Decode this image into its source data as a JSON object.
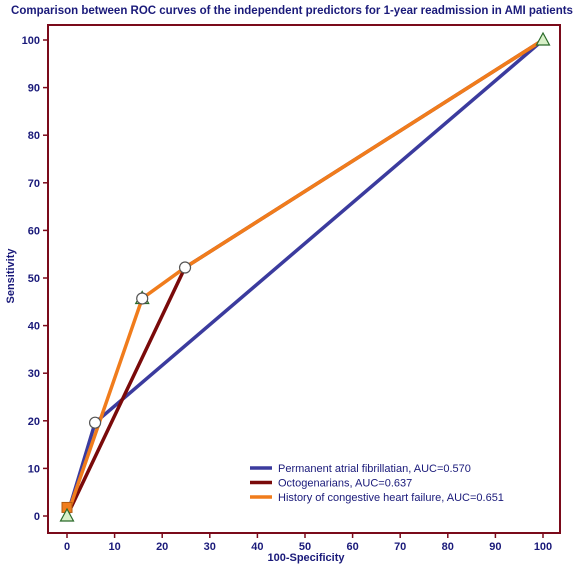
{
  "chart_data": {
    "type": "line",
    "title": "Comparison between ROC curves of the  independent predictors for 1-year readmission in AMI patients",
    "xlabel": "100-Specificity",
    "ylabel": "Sensitivity",
    "xlim": [
      0,
      100
    ],
    "ylim": [
      0,
      100
    ],
    "xticks": [
      0,
      10,
      20,
      30,
      40,
      50,
      60,
      70,
      80,
      90,
      100
    ],
    "yticks": [
      0,
      10,
      20,
      30,
      40,
      50,
      60,
      70,
      80,
      90,
      100
    ],
    "grid": false,
    "legend_position": "bottom-right",
    "series": [
      {
        "name": "Permanent atrial fibrillatian, AUC=0.570",
        "color": "#3b3b9e",
        "x": [
          0,
          5.9,
          100
        ],
        "y": [
          0,
          19.6,
          100
        ]
      },
      {
        "name": "Octogenarians, AUC=0.637",
        "color": "#7a0a0a",
        "x": [
          0,
          24.8,
          100
        ],
        "y": [
          0,
          52.2,
          100
        ]
      },
      {
        "name": "History of congestive heart failure, AUC=0.651",
        "color": "#f07c1c",
        "x": [
          0,
          15.8,
          24.8,
          100
        ],
        "y": [
          0,
          45.7,
          52.2,
          100
        ]
      }
    ],
    "markers": {
      "circles": [
        {
          "x": 5.9,
          "y": 19.6
        },
        {
          "x": 15.8,
          "y": 45.7
        },
        {
          "x": 24.8,
          "y": 52.2
        }
      ],
      "triangles": [
        {
          "x": 0,
          "y": 0
        },
        {
          "x": 100,
          "y": 100
        },
        {
          "x": 15.8,
          "y": 45.7
        }
      ],
      "squares": [
        {
          "x": 0,
          "y": 1.8
        }
      ]
    },
    "colors": {
      "frame": "#7a0a1a",
      "text": "#1a1a7a",
      "triangle_fill": "#d8f0c8",
      "triangle_stroke": "#2a6a2a",
      "square_fill": "#f07c1c",
      "square_stroke": "#b05a10"
    }
  }
}
